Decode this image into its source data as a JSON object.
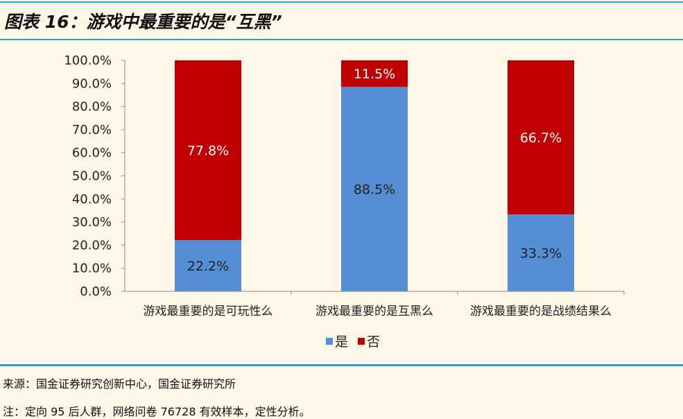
{
  "header": {
    "title": "图表 16：游戏中最重要的是“互黑”"
  },
  "colors": {
    "rule": "#2a9fd8",
    "background": "#fdf7e7",
    "yes": "#558ed5",
    "no": "#c00000"
  },
  "chart_data": {
    "type": "bar",
    "stacked": true,
    "categories": [
      "游戏最重要的是可玩性么",
      "游戏最重要的是互黑么",
      "游戏最重要的是战绩结果么"
    ],
    "series": [
      {
        "name": "是",
        "values": [
          22.2,
          88.5,
          33.3
        ],
        "labels": [
          "22.2%",
          "88.5%",
          "33.3%"
        ],
        "color": "#558ed5",
        "label_color": "#222222"
      },
      {
        "name": "否",
        "values": [
          77.8,
          11.5,
          66.7
        ],
        "labels": [
          "77.8%",
          "11.5%",
          "66.7%"
        ],
        "color": "#c00000",
        "label_color": "#ffffff"
      }
    ],
    "ylim": [
      0,
      100
    ],
    "yticks": [
      "0.0%",
      "10.0%",
      "20.0%",
      "30.0%",
      "40.0%",
      "50.0%",
      "60.0%",
      "70.0%",
      "80.0%",
      "90.0%",
      "100.0%"
    ],
    "grid": false,
    "legend_position": "bottom"
  },
  "footer": {
    "source": "来源：国金证券研究创新中心，国金证券研究所",
    "note": "注：定向 95 后人群，网络问卷 76728 有效样本，定性分析。"
  }
}
